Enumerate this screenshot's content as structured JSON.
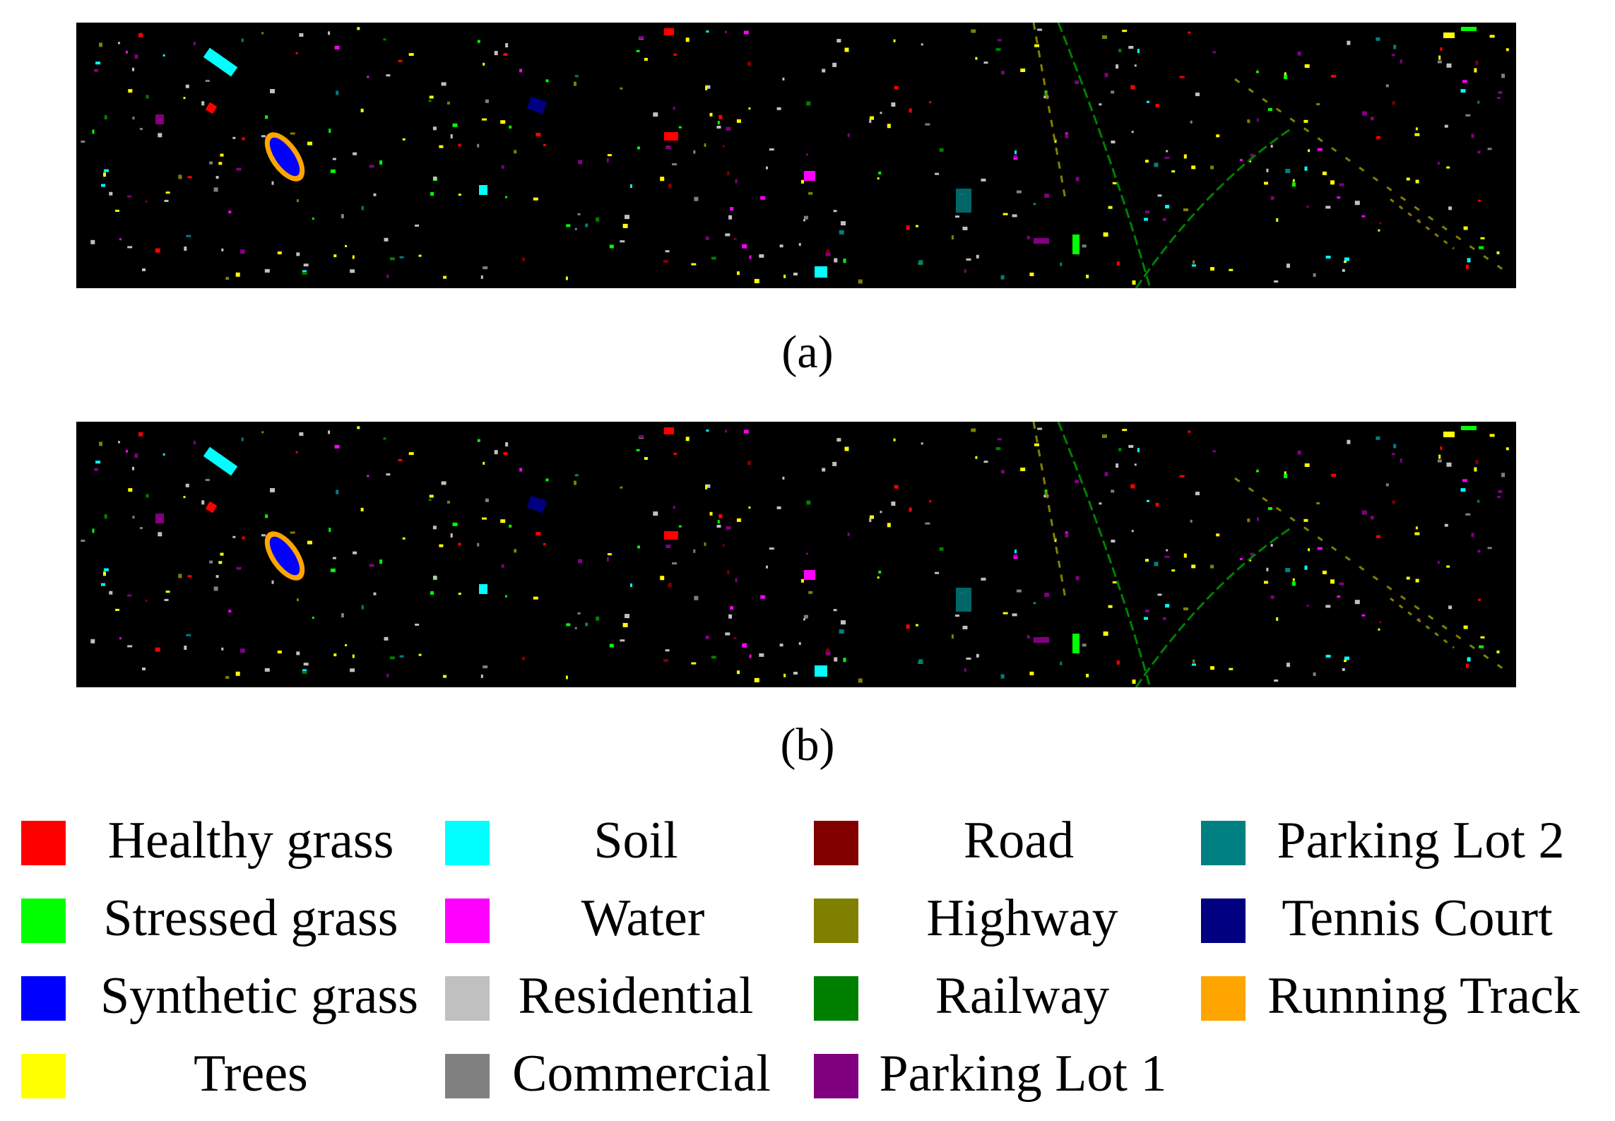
{
  "figure": {
    "panels": [
      {
        "id": "a",
        "caption": "(a)"
      },
      {
        "id": "b",
        "caption": "(b)"
      }
    ],
    "legend": [
      {
        "label": "Healthy grass",
        "color": "#ff0000"
      },
      {
        "label": "Stressed grass",
        "color": "#00ff00"
      },
      {
        "label": "Synthetic grass",
        "color": "#0000ff"
      },
      {
        "label": "Trees",
        "color": "#ffff00"
      },
      {
        "label": "Soil",
        "color": "#00ffff"
      },
      {
        "label": "Water",
        "color": "#ff00ff"
      },
      {
        "label": "Residential",
        "color": "#c0c0c0"
      },
      {
        "label": "Commercial",
        "color": "#808080"
      },
      {
        "label": "Road",
        "color": "#800000"
      },
      {
        "label": "Highway",
        "color": "#808000"
      },
      {
        "label": "Railway",
        "color": "#008000"
      },
      {
        "label": "Parking Lot 1",
        "color": "#800080"
      },
      {
        "label": "Parking Lot 2",
        "color": "#008080"
      },
      {
        "label": "Tennis Court",
        "color": "#000080"
      },
      {
        "label": "Running Track",
        "color": "#ffa500"
      }
    ]
  }
}
